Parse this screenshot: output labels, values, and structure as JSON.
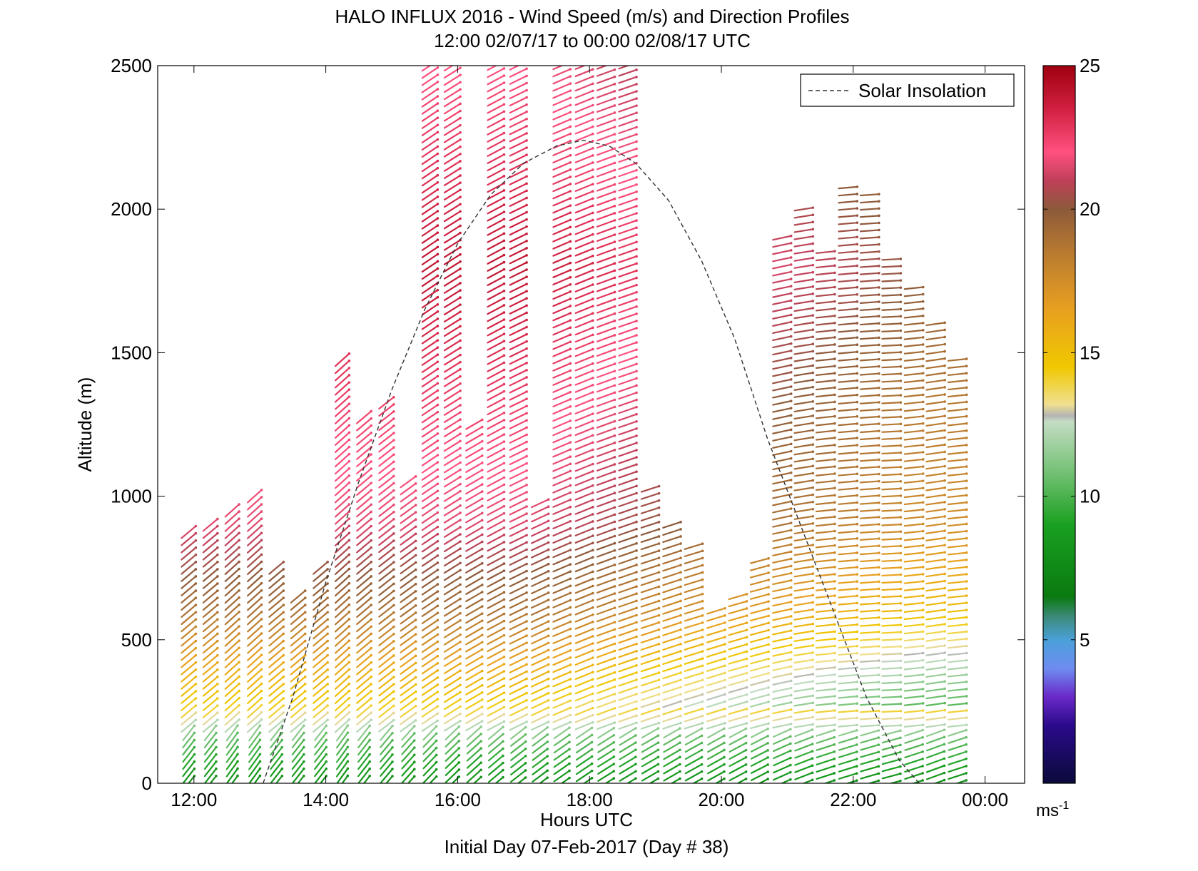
{
  "chart_data": {
    "type": "wind-barb-profile",
    "title": "HALO INFLUX 2016 - Wind Speed (m/s) and Direction Profiles",
    "subtitle": "12:00 02/07/17 to 00:00 02/08/17  UTC",
    "xlabel": "Hours UTC",
    "ylabel": "Altitude (m)",
    "footer": "Initial Day 07-Feb-2017 (Day # 38)",
    "xlim": [
      11.45,
      24.6
    ],
    "ylim": [
      0,
      2500
    ],
    "x_ticks": [
      12,
      14,
      16,
      18,
      20,
      22,
      24
    ],
    "x_tick_labels": [
      "12:00",
      "14:00",
      "16:00",
      "18:00",
      "20:00",
      "22:00",
      "00:00"
    ],
    "y_ticks": [
      0,
      500,
      1000,
      1500,
      2000,
      2500
    ],
    "y_tick_labels": [
      "0",
      "500",
      "1000",
      "1500",
      "2000",
      "2500"
    ],
    "colorbar": {
      "range": [
        0,
        25
      ],
      "ticks": [
        5,
        10,
        15,
        20,
        25
      ],
      "tick_labels": [
        "5",
        "10",
        "15",
        "20",
        "25"
      ],
      "unit_label": "ms",
      "unit_exponent": "-1",
      "stops": [
        {
          "v": 0,
          "c": "#0a0a3a"
        },
        {
          "v": 2,
          "c": "#2a0a8a"
        },
        {
          "v": 3,
          "c": "#6a28c8"
        },
        {
          "v": 4,
          "c": "#6e8cf0"
        },
        {
          "v": 5,
          "c": "#4aa0d8"
        },
        {
          "v": 5.8,
          "c": "#3c8a7a"
        },
        {
          "v": 6.5,
          "c": "#0a7a10"
        },
        {
          "v": 9,
          "c": "#1aa020"
        },
        {
          "v": 11,
          "c": "#7cc47c"
        },
        {
          "v": 12.6,
          "c": "#c4dcc4"
        },
        {
          "v": 12.8,
          "c": "#b4b4b4"
        },
        {
          "v": 13.2,
          "c": "#f0e090"
        },
        {
          "v": 14.5,
          "c": "#f0c800"
        },
        {
          "v": 16.5,
          "c": "#e8a020"
        },
        {
          "v": 18.5,
          "c": "#b87a30"
        },
        {
          "v": 20,
          "c": "#8c5a3a"
        },
        {
          "v": 21,
          "c": "#c0405a"
        },
        {
          "v": 22,
          "c": "#ff5080"
        },
        {
          "v": 23.5,
          "c": "#d02040"
        },
        {
          "v": 25,
          "c": "#a00010"
        }
      ]
    },
    "legend": {
      "label": "Solar Insolation",
      "placement": "top-right"
    },
    "solar_insolation": {
      "x": [
        13.05,
        13.5,
        14.0,
        14.5,
        15.0,
        15.5,
        16.0,
        16.5,
        17.0,
        17.5,
        17.9,
        18.3,
        18.7,
        19.2,
        19.7,
        20.2,
        20.7,
        21.2,
        21.7,
        22.2,
        22.7,
        23.0
      ],
      "y": [
        0,
        300,
        700,
        1050,
        1370,
        1650,
        1880,
        2050,
        2160,
        2220,
        2240,
        2220,
        2160,
        2030,
        1820,
        1550,
        1200,
        900,
        600,
        300,
        80,
        0
      ]
    },
    "profiles": [
      {
        "t": 11.92,
        "bottom": 0,
        "top": 880,
        "tilt": 40
      },
      {
        "t": 12.25,
        "bottom": 0,
        "top": 910,
        "tilt": 40
      },
      {
        "t": 12.58,
        "bottom": 0,
        "top": 960,
        "tilt": 42
      },
      {
        "t": 12.92,
        "bottom": 0,
        "top": 1010,
        "tilt": 42
      },
      {
        "t": 13.25,
        "bottom": 0,
        "top": 760,
        "tilt": 40
      },
      {
        "t": 13.58,
        "bottom": 0,
        "top": 660,
        "tilt": 40
      },
      {
        "t": 13.92,
        "bottom": 0,
        "top": 760,
        "tilt": 40
      },
      {
        "t": 14.25,
        "bottom": 0,
        "top": 1490,
        "tilt": 42
      },
      {
        "t": 14.58,
        "bottom": 0,
        "top": 1290,
        "tilt": 40
      },
      {
        "t": 14.92,
        "bottom": 0,
        "top": 1330,
        "tilt": 38
      },
      {
        "t": 15.25,
        "bottom": 0,
        "top": 1050,
        "tilt": 36
      },
      {
        "t": 15.58,
        "bottom": 0,
        "top": 2500,
        "tilt": 34
      },
      {
        "t": 15.92,
        "bottom": 0,
        "top": 2500,
        "tilt": 32
      },
      {
        "t": 16.25,
        "bottom": 0,
        "top": 1250,
        "tilt": 30
      },
      {
        "t": 16.58,
        "bottom": 0,
        "top": 2500,
        "tilt": 28
      },
      {
        "t": 16.92,
        "bottom": 0,
        "top": 2500,
        "tilt": 26
      },
      {
        "t": 17.25,
        "bottom": 0,
        "top": 980,
        "tilt": 25
      },
      {
        "t": 17.58,
        "bottom": 0,
        "top": 2500,
        "tilt": 23
      },
      {
        "t": 17.92,
        "bottom": 0,
        "top": 2500,
        "tilt": 22
      },
      {
        "t": 18.25,
        "bottom": 0,
        "top": 2500,
        "tilt": 20
      },
      {
        "t": 18.58,
        "bottom": 0,
        "top": 2500,
        "tilt": 19
      },
      {
        "t": 18.92,
        "bottom": 0,
        "top": 1040,
        "tilt": 18
      },
      {
        "t": 19.25,
        "bottom": 0,
        "top": 910,
        "tilt": 18
      },
      {
        "t": 19.58,
        "bottom": 0,
        "top": 840,
        "tilt": 17
      },
      {
        "t": 19.92,
        "bottom": 0,
        "top": 620,
        "tilt": 17
      },
      {
        "t": 20.25,
        "bottom": 0,
        "top": 660,
        "tilt": 16
      },
      {
        "t": 20.58,
        "bottom": 0,
        "top": 780,
        "tilt": 15
      },
      {
        "t": 20.92,
        "bottom": 0,
        "top": 1910,
        "tilt": 12
      },
      {
        "t": 21.25,
        "bottom": 0,
        "top": 2000,
        "tilt": 9
      },
      {
        "t": 21.58,
        "bottom": 0,
        "top": 1870,
        "tilt": 6
      },
      {
        "t": 21.92,
        "bottom": 0,
        "top": 2090,
        "tilt": 5
      },
      {
        "t": 22.25,
        "bottom": 0,
        "top": 2050,
        "tilt": 4
      },
      {
        "t": 22.58,
        "bottom": 0,
        "top": 1830,
        "tilt": 3
      },
      {
        "t": 22.92,
        "bottom": 0,
        "top": 1740,
        "tilt": 6
      },
      {
        "t": 23.25,
        "bottom": 0,
        "top": 1620,
        "tilt": 8
      },
      {
        "t": 23.58,
        "bottom": 0,
        "top": 1490,
        "tilt": 6
      }
    ],
    "speed_by_altitude": [
      {
        "alt": 0,
        "speed": 8
      },
      {
        "alt": 150,
        "speed": 10.5
      },
      {
        "alt": 250,
        "speed": 14
      },
      {
        "alt": 400,
        "speed": 16
      },
      {
        "alt": 600,
        "speed": 19
      },
      {
        "alt": 900,
        "speed": 21.5
      },
      {
        "alt": 1300,
        "speed": 22.5
      },
      {
        "alt": 1800,
        "speed": 24
      },
      {
        "alt": 2500,
        "speed": 22
      }
    ],
    "afternoon_speed_offset": -4
  }
}
